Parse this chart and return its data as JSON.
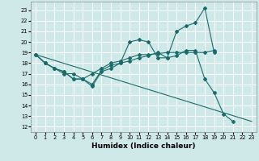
{
  "xlabel": "Humidex (Indice chaleur)",
  "bg_color": "#cfe8e8",
  "grid_color": "#ffffff",
  "line_color": "#1a6b6b",
  "xlim": [
    -0.5,
    23.5
  ],
  "ylim": [
    11.5,
    23.8
  ],
  "yticks": [
    12,
    13,
    14,
    15,
    16,
    17,
    18,
    19,
    20,
    21,
    22,
    23
  ],
  "xticks": [
    0,
    1,
    2,
    3,
    4,
    5,
    6,
    7,
    8,
    9,
    10,
    11,
    12,
    13,
    14,
    15,
    16,
    17,
    18,
    19,
    20,
    21,
    22,
    23
  ],
  "line1_x": [
    0,
    1,
    2,
    3,
    4,
    5,
    6,
    7,
    8,
    9,
    10,
    11,
    12,
    13,
    14,
    15,
    16,
    17,
    18,
    19
  ],
  "line1_y": [
    18.8,
    18.0,
    17.5,
    17.0,
    17.0,
    16.5,
    15.8,
    17.2,
    17.5,
    18.0,
    20.0,
    20.2,
    20.0,
    18.5,
    18.5,
    21.0,
    21.5,
    21.8,
    23.2,
    19.0
  ],
  "line2_x": [
    0,
    1,
    2,
    3,
    4,
    5,
    6,
    7,
    8,
    9,
    10,
    11,
    12,
    13,
    14,
    15,
    16,
    17,
    18,
    19
  ],
  "line2_y": [
    18.8,
    18.0,
    17.5,
    17.2,
    16.5,
    16.5,
    17.0,
    17.5,
    18.0,
    18.2,
    18.5,
    18.8,
    18.8,
    18.9,
    19.0,
    19.0,
    19.0,
    19.0,
    19.0,
    19.2
  ],
  "line3_x": [
    0,
    1,
    2,
    3,
    4,
    5,
    6,
    7,
    8,
    9,
    10,
    11,
    12,
    13,
    14,
    15,
    16,
    17,
    18,
    19,
    20,
    21
  ],
  "line3_y": [
    18.8,
    18.0,
    17.5,
    17.2,
    16.5,
    16.5,
    16.0,
    17.3,
    17.8,
    18.0,
    18.2,
    18.5,
    18.7,
    19.0,
    18.5,
    18.7,
    19.2,
    19.2,
    16.5,
    15.2,
    13.2,
    12.5
  ],
  "line4_x": [
    0,
    23
  ],
  "line4_y": [
    18.8,
    12.5
  ],
  "lw": 0.8,
  "ms": 2.0,
  "xlabel_fontsize": 6.5,
  "tick_fontsize": 4.8
}
